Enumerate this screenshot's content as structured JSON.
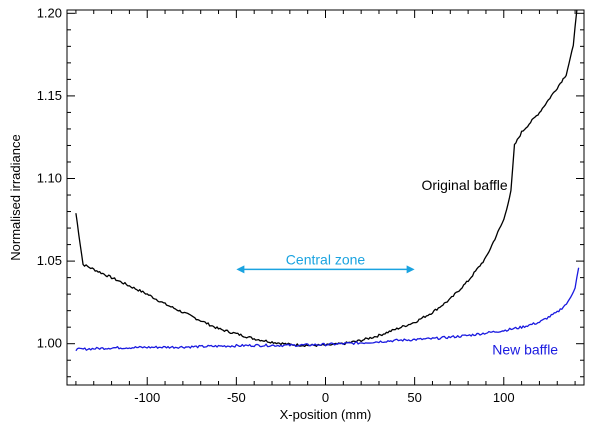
{
  "chart_data": {
    "type": "line",
    "xlabel": "X-position (mm)",
    "ylabel": "Normalised irradiance",
    "xlim": [
      -145,
      145
    ],
    "ylim": [
      0.975,
      1.202
    ],
    "xticks": [
      -100,
      -50,
      0,
      50,
      100
    ],
    "xtick_labels": [
      "-100",
      "-50",
      "0",
      "50",
      "100"
    ],
    "yticks": [
      1.0,
      1.05,
      1.1,
      1.15,
      1.2
    ],
    "ytick_labels": [
      "1.00",
      "1.05",
      "1.10",
      "1.15",
      "1.20"
    ],
    "grid": false,
    "series": [
      {
        "name": "Original baffle",
        "color": "#000000",
        "points": [
          [
            -140,
            1.079
          ],
          [
            -136,
            1.048
          ],
          [
            -130,
            1.045
          ],
          [
            -120,
            1.04
          ],
          [
            -110,
            1.035
          ],
          [
            -100,
            1.03
          ],
          [
            -90,
            1.024
          ],
          [
            -80,
            1.019
          ],
          [
            -70,
            1.014
          ],
          [
            -60,
            1.009
          ],
          [
            -50,
            1.006
          ],
          [
            -40,
            1.003
          ],
          [
            -30,
            1.001
          ],
          [
            -20,
            0.9995
          ],
          [
            -10,
            0.999
          ],
          [
            0,
            0.999
          ],
          [
            10,
            1.0
          ],
          [
            20,
            1.002
          ],
          [
            30,
            1.005
          ],
          [
            40,
            1.009
          ],
          [
            50,
            1.013
          ],
          [
            60,
            1.019
          ],
          [
            70,
            1.027
          ],
          [
            80,
            1.038
          ],
          [
            90,
            1.052
          ],
          [
            100,
            1.075
          ],
          [
            104,
            1.092
          ],
          [
            106,
            1.12
          ],
          [
            110,
            1.128
          ],
          [
            120,
            1.14
          ],
          [
            130,
            1.155
          ],
          [
            135,
            1.163
          ],
          [
            139,
            1.18
          ],
          [
            141,
            1.205
          ]
        ]
      },
      {
        "name": "New baffle",
        "color": "#1a1ae0",
        "points": [
          [
            -140,
            0.9965
          ],
          [
            -120,
            0.9975
          ],
          [
            -100,
            0.9978
          ],
          [
            -80,
            0.998
          ],
          [
            -60,
            0.9985
          ],
          [
            -40,
            0.999
          ],
          [
            -20,
            0.999
          ],
          [
            0,
            0.9995
          ],
          [
            20,
            1.0005
          ],
          [
            40,
            1.002
          ],
          [
            60,
            1.003
          ],
          [
            80,
            1.005
          ],
          [
            100,
            1.008
          ],
          [
            110,
            1.01
          ],
          [
            120,
            1.013
          ],
          [
            130,
            1.019
          ],
          [
            136,
            1.025
          ],
          [
            140,
            1.034
          ],
          [
            142,
            1.046
          ]
        ]
      }
    ],
    "annotations": [
      {
        "text": "Original baffle",
        "x": 78,
        "y": 1.096,
        "color": "#000000",
        "series": 0
      },
      {
        "text": "New baffle",
        "x": 112,
        "y": 0.9965,
        "color": "#1a1ae0",
        "series": 1
      },
      {
        "text": "Central zone",
        "x": 0,
        "y": 1.048,
        "color": "#1aa3e0"
      }
    ],
    "central_zone_arrow": {
      "x_from": -50,
      "x_to": 50,
      "y": 1.045,
      "color": "#1aa3e0"
    }
  }
}
